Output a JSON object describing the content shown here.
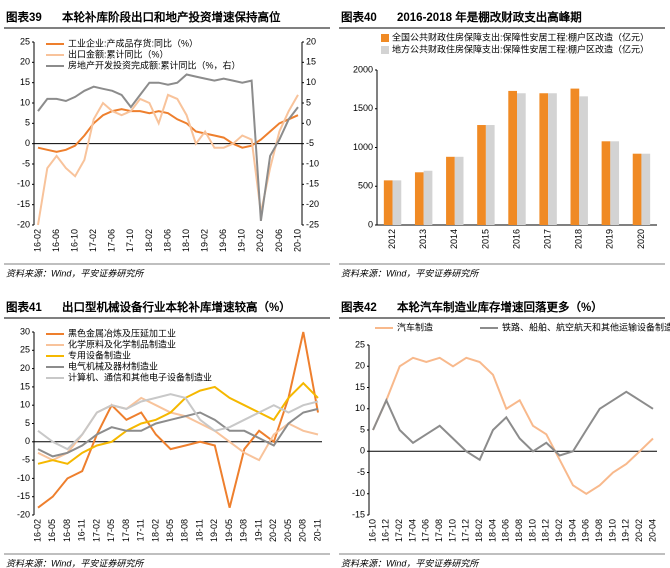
{
  "chart_data": [
    {
      "label": "图表39",
      "title": "本轮补库阶段出口和地产投资增速保持高位",
      "source": "资料来源：Wind，平安证券研究所",
      "type": "line",
      "legend": "top-left",
      "categories": [
        "16-02",
        null,
        "16-06",
        null,
        "16-10",
        null,
        "17-02",
        null,
        "17-06",
        null,
        "17-10",
        null,
        "18-02",
        null,
        "18-06",
        null,
        "18-10",
        null,
        "19-02",
        null,
        "19-06",
        null,
        "19-10",
        null,
        "20-02",
        null,
        "20-06",
        null,
        "20-10"
      ],
      "ylim": [
        -20,
        25
      ],
      "yticks": [
        -20,
        -15,
        -10,
        -5,
        0,
        5,
        10,
        15,
        20,
        25
      ],
      "y2lim": [
        -25,
        20
      ],
      "y2ticks": [
        -25,
        -20,
        -15,
        -10,
        -5,
        0,
        5,
        10,
        15,
        20
      ],
      "series": [
        {
          "name": "工业企业:产成品存货:同比（%）",
          "color": "#ee7f2d",
          "values": [
            -1,
            -1.5,
            -2,
            -1.5,
            -0.5,
            2,
            5,
            7,
            8,
            8.5,
            8,
            8,
            7.5,
            8,
            7.5,
            6,
            5,
            3,
            2.5,
            2,
            1.5,
            0,
            -1,
            -0.5,
            1,
            3,
            5,
            6,
            7
          ]
        },
        {
          "name": "出口金额:累计同比（%）",
          "color": "#f8c39b",
          "values": [
            -20,
            -6,
            -3,
            -6,
            -8,
            -4,
            6,
            10,
            8,
            7,
            8,
            11,
            10,
            5,
            12,
            11,
            7,
            0,
            3,
            -1,
            -1,
            0,
            2,
            1,
            -17,
            -6,
            3,
            8,
            12
          ]
        },
        {
          "name": "房地产开发投资完成额:累计同比（%，右）",
          "color": "#8c8c8c",
          "axis": "y2",
          "values": [
            3,
            6,
            6,
            5.5,
            6.5,
            8,
            9,
            8.5,
            8,
            7,
            4,
            7,
            10,
            10,
            9.5,
            10,
            12,
            11.5,
            11,
            10.5,
            11,
            10.5,
            10,
            10.5,
            -24,
            -8,
            -4,
            1,
            4
          ]
        }
      ]
    },
    {
      "label": "图表40",
      "title": "2016-2018 年是棚改财政支出高峰期",
      "source": "资料来源：Wind，平安证券研究所",
      "type": "bar",
      "legend": "top",
      "categories": [
        "2012",
        "2013",
        "2014",
        "2015",
        "2016",
        "2017",
        "2018",
        "2019",
        "2020"
      ],
      "ylim": [
        0,
        2000
      ],
      "yticks": [
        0,
        500,
        1000,
        1500,
        2000
      ],
      "series": [
        {
          "name": "全国公共财政住房保障支出:保障性安居工程:棚户区改造（亿元）",
          "color": "#f08a24",
          "values": [
            576,
            680,
            880,
            1290,
            1730,
            1700,
            1760,
            1080,
            920
          ]
        },
        {
          "name": "地方公共财政住房保障支出:保障性安居工程:棚户区改造（亿元）",
          "color": "#d3d3d3",
          "values": [
            576,
            700,
            880,
            1290,
            1700,
            1700,
            1660,
            1080,
            920
          ]
        }
      ]
    },
    {
      "label": "图表41",
      "title": "出口型机械设备行业本轮补库增速较高（%）",
      "source": "资料来源：Wind，平安证券研究所",
      "type": "line",
      "legend": "top-left",
      "categories": [
        "16-02",
        "16-05",
        "16-08",
        "16-11",
        "17-02",
        "17-05",
        "17-08",
        "17-11",
        "18-02",
        "18-05",
        "18-08",
        "18-11",
        "19-02",
        "19-05",
        "19-08",
        "19-11",
        "20-02",
        "20-05",
        "20-08",
        "20-11"
      ],
      "ylim": [
        -20,
        30
      ],
      "yticks": [
        -20,
        -15,
        -10,
        -5,
        0,
        5,
        10,
        15,
        20,
        25,
        30
      ],
      "series": [
        {
          "name": "黑色金属冶炼及压延加工业",
          "color": "#ee7f2d",
          "values": [
            -18,
            -15,
            -10,
            -8,
            2,
            10,
            6,
            8,
            2,
            -2,
            -1,
            0,
            -1,
            -18,
            -2,
            3,
            0,
            12,
            30,
            8
          ]
        },
        {
          "name": "化学原料及化学制品制造业",
          "color": "#f8c39b",
          "values": [
            -3,
            -5,
            -3,
            2,
            8,
            10,
            9,
            12,
            10,
            8,
            7,
            5,
            3,
            0,
            -3,
            -5,
            2,
            5,
            3,
            2
          ]
        },
        {
          "name": "专用设备制造业",
          "color": "#f5b800",
          "values": [
            -6,
            -5,
            -6,
            -3,
            -1,
            0,
            3,
            5,
            6,
            8,
            12,
            14,
            15,
            12,
            10,
            8,
            6,
            12,
            16,
            12
          ]
        },
        {
          "name": "电气机械及器材制造业",
          "color": "#8c8c8c",
          "values": [
            -2,
            -4,
            -3,
            -1,
            2,
            4,
            3,
            3,
            5,
            6,
            7,
            8,
            6,
            3,
            3,
            1,
            -1,
            5,
            8,
            9
          ]
        },
        {
          "name": "计算机、通信和其他电子设备制造业",
          "color": "#c8c8c8",
          "values": [
            3,
            0,
            -2,
            2,
            8,
            10,
            9,
            11,
            12,
            13,
            12,
            6,
            3,
            4,
            6,
            8,
            10,
            8,
            10,
            11
          ]
        }
      ]
    },
    {
      "label": "图表42",
      "title": "本轮汽车制造业库存增速回落更多（%）",
      "source": "资料来源：Wind，平安证券研究所",
      "type": "line",
      "legend": "top",
      "categories": [
        "16-10",
        "16-12",
        "17-02",
        "17-04",
        "17-06",
        "17-08",
        "17-10",
        "17-12",
        "18-02",
        "18-04",
        "18-06",
        "18-08",
        "18-10",
        "18-12",
        "19-02",
        "19-04",
        "19-06",
        "19-08",
        "19-10",
        "19-12",
        "20-02",
        "20-04"
      ],
      "ylim": [
        -15,
        25
      ],
      "yticks": [
        -15,
        -10,
        -5,
        0,
        5,
        10,
        15,
        20,
        25
      ],
      "series": [
        {
          "name": "汽车制造",
          "color": "#f8b98c",
          "values": [
            5,
            12,
            20,
            22,
            21,
            22,
            20,
            22,
            21,
            18,
            10,
            12,
            6,
            4,
            -2,
            -8,
            -10,
            -8,
            -5,
            -3,
            0,
            3
          ]
        },
        {
          "name": "铁路、船舶、航空航天和其他运输设备制造业",
          "color": "#8c8c8c",
          "values": [
            5,
            12,
            5,
            2,
            4,
            6,
            3,
            0,
            -2,
            5,
            8,
            3,
            0,
            2,
            -1,
            0,
            5,
            10,
            12,
            14,
            12,
            10
          ]
        }
      ]
    }
  ]
}
